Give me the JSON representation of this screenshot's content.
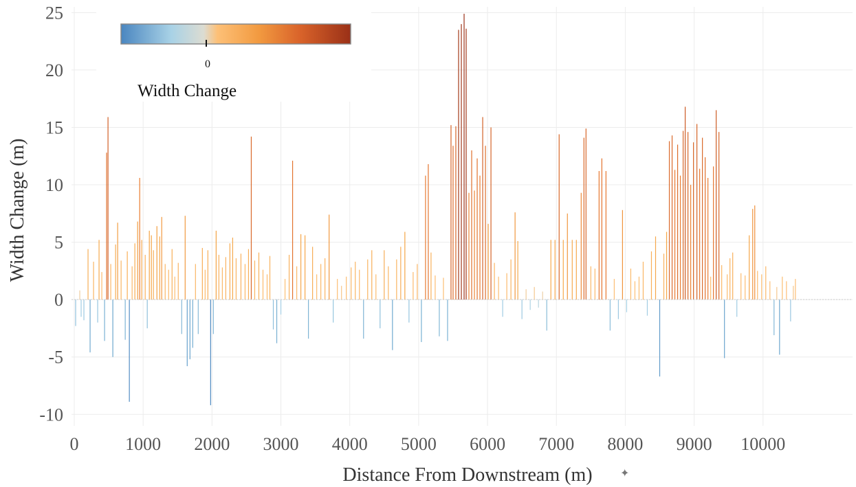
{
  "chart_data": {
    "type": "bar",
    "title": "",
    "xlabel": "Distance From Downstream (m)",
    "ylabel": "Width Change (m)",
    "xlim": [
      -40,
      11300
    ],
    "ylim": [
      -11,
      25.5
    ],
    "xticks": [
      0,
      1000,
      2000,
      3000,
      4000,
      5000,
      6000,
      7000,
      8000,
      9000,
      10000
    ],
    "yticks": [
      -10,
      -5,
      0,
      5,
      10,
      15,
      20,
      25
    ],
    "grid": true,
    "legend": {
      "title": "Width Change",
      "type": "colorbar",
      "placement": "top-left",
      "tick_value": 0,
      "tick_label": "0",
      "colors": [
        "#4a86c0",
        "#a9d2e6",
        "#dcdcd2",
        "#fdc077",
        "#f4a445",
        "#e8782f",
        "#c4511f",
        "#9a3017"
      ]
    },
    "bar_width_m": 10,
    "peaks": [
      {
        "x": 20,
        "v": -2.3
      },
      {
        "x": 80,
        "v": 0.8
      },
      {
        "x": 100,
        "v": -1.5
      },
      {
        "x": 140,
        "v": -1.8
      },
      {
        "x": 200,
        "v": 4.4
      },
      {
        "x": 230,
        "v": -4.6
      },
      {
        "x": 280,
        "v": 3.3
      },
      {
        "x": 340,
        "v": -2.0
      },
      {
        "x": 360,
        "v": 5.2
      },
      {
        "x": 400,
        "v": 2.4
      },
      {
        "x": 440,
        "v": -3.6
      },
      {
        "x": 470,
        "v": 12.8
      },
      {
        "x": 490,
        "v": 15.9
      },
      {
        "x": 530,
        "v": 3.1
      },
      {
        "x": 560,
        "v": -5.0
      },
      {
        "x": 600,
        "v": 4.8
      },
      {
        "x": 630,
        "v": 6.7
      },
      {
        "x": 680,
        "v": 3.4
      },
      {
        "x": 740,
        "v": -3.5
      },
      {
        "x": 770,
        "v": 4.2
      },
      {
        "x": 800,
        "v": -8.9
      },
      {
        "x": 840,
        "v": 2.9
      },
      {
        "x": 880,
        "v": 4.9
      },
      {
        "x": 920,
        "v": 6.8
      },
      {
        "x": 950,
        "v": 10.6
      },
      {
        "x": 980,
        "v": 5.2
      },
      {
        "x": 1030,
        "v": 3.9
      },
      {
        "x": 1060,
        "v": -2.5
      },
      {
        "x": 1090,
        "v": 6.0
      },
      {
        "x": 1120,
        "v": 5.6
      },
      {
        "x": 1150,
        "v": 4.3
      },
      {
        "x": 1200,
        "v": 6.4
      },
      {
        "x": 1240,
        "v": 5.5
      },
      {
        "x": 1270,
        "v": 7.2
      },
      {
        "x": 1320,
        "v": 3.1
      },
      {
        "x": 1370,
        "v": 2.6
      },
      {
        "x": 1420,
        "v": 4.4
      },
      {
        "x": 1460,
        "v": 2.0
      },
      {
        "x": 1510,
        "v": 3.2
      },
      {
        "x": 1560,
        "v": -3.0
      },
      {
        "x": 1610,
        "v": 7.3
      },
      {
        "x": 1640,
        "v": -5.8
      },
      {
        "x": 1680,
        "v": -5.2
      },
      {
        "x": 1720,
        "v": -4.2
      },
      {
        "x": 1760,
        "v": 3.1
      },
      {
        "x": 1800,
        "v": -3.0
      },
      {
        "x": 1860,
        "v": 4.5
      },
      {
        "x": 1900,
        "v": 2.6
      },
      {
        "x": 1940,
        "v": 4.3
      },
      {
        "x": 1980,
        "v": -9.2
      },
      {
        "x": 2020,
        "v": -3.0
      },
      {
        "x": 2060,
        "v": 6.0
      },
      {
        "x": 2100,
        "v": 3.9
      },
      {
        "x": 2150,
        "v": 2.8
      },
      {
        "x": 2200,
        "v": 3.7
      },
      {
        "x": 2260,
        "v": 4.9
      },
      {
        "x": 2300,
        "v": 5.4
      },
      {
        "x": 2350,
        "v": 3.6
      },
      {
        "x": 2420,
        "v": 4.0
      },
      {
        "x": 2480,
        "v": 3.1
      },
      {
        "x": 2530,
        "v": 4.4
      },
      {
        "x": 2570,
        "v": 14.2
      },
      {
        "x": 2620,
        "v": 3.4
      },
      {
        "x": 2680,
        "v": 4.1
      },
      {
        "x": 2740,
        "v": 2.6
      },
      {
        "x": 2800,
        "v": 2.2
      },
      {
        "x": 2840,
        "v": 3.8
      },
      {
        "x": 2890,
        "v": -2.6
      },
      {
        "x": 2940,
        "v": -3.8
      },
      {
        "x": 3000,
        "v": -1.3
      },
      {
        "x": 3060,
        "v": 1.8
      },
      {
        "x": 3120,
        "v": 3.9
      },
      {
        "x": 3170,
        "v": 12.1
      },
      {
        "x": 3230,
        "v": 2.9
      },
      {
        "x": 3290,
        "v": 5.7
      },
      {
        "x": 3350,
        "v": 5.6
      },
      {
        "x": 3400,
        "v": -3.4
      },
      {
        "x": 3460,
        "v": 4.6
      },
      {
        "x": 3520,
        "v": 2.2
      },
      {
        "x": 3580,
        "v": 3.1
      },
      {
        "x": 3640,
        "v": 3.6
      },
      {
        "x": 3700,
        "v": 7.4
      },
      {
        "x": 3760,
        "v": -2.0
      },
      {
        "x": 3820,
        "v": 1.8
      },
      {
        "x": 3880,
        "v": 1.2
      },
      {
        "x": 3950,
        "v": 2.0
      },
      {
        "x": 4020,
        "v": 2.8
      },
      {
        "x": 4080,
        "v": 3.3
      },
      {
        "x": 4140,
        "v": 2.6
      },
      {
        "x": 4200,
        "v": -3.4
      },
      {
        "x": 4260,
        "v": 3.5
      },
      {
        "x": 4320,
        "v": 4.3
      },
      {
        "x": 4380,
        "v": 2.2
      },
      {
        "x": 4440,
        "v": -2.5
      },
      {
        "x": 4500,
        "v": 4.3
      },
      {
        "x": 4560,
        "v": 2.9
      },
      {
        "x": 4620,
        "v": -4.4
      },
      {
        "x": 4680,
        "v": 3.5
      },
      {
        "x": 4740,
        "v": 4.6
      },
      {
        "x": 4800,
        "v": 5.9
      },
      {
        "x": 4860,
        "v": -2.0
      },
      {
        "x": 4920,
        "v": 2.4
      },
      {
        "x": 4980,
        "v": 3.1
      },
      {
        "x": 5040,
        "v": -3.7
      },
      {
        "x": 5100,
        "v": 10.8
      },
      {
        "x": 5140,
        "v": 11.8
      },
      {
        "x": 5180,
        "v": 4.1
      },
      {
        "x": 5240,
        "v": 2.1
      },
      {
        "x": 5300,
        "v": -3.2
      },
      {
        "x": 5360,
        "v": 1.9
      },
      {
        "x": 5420,
        "v": -3.6
      },
      {
        "x": 5470,
        "v": 15.2
      },
      {
        "x": 5500,
        "v": 13.4
      },
      {
        "x": 5540,
        "v": 15.1
      },
      {
        "x": 5580,
        "v": 23.5
      },
      {
        "x": 5620,
        "v": 24.0
      },
      {
        "x": 5660,
        "v": 24.9
      },
      {
        "x": 5690,
        "v": 23.6
      },
      {
        "x": 5730,
        "v": 9.3
      },
      {
        "x": 5770,
        "v": 13.0
      },
      {
        "x": 5810,
        "v": 9.5
      },
      {
        "x": 5850,
        "v": 12.3
      },
      {
        "x": 5890,
        "v": 10.8
      },
      {
        "x": 5930,
        "v": 15.9
      },
      {
        "x": 5970,
        "v": 13.4
      },
      {
        "x": 6010,
        "v": 6.6
      },
      {
        "x": 6050,
        "v": 15.0
      },
      {
        "x": 6100,
        "v": 3.2
      },
      {
        "x": 6160,
        "v": 2.0
      },
      {
        "x": 6220,
        "v": -1.5
      },
      {
        "x": 6280,
        "v": 2.3
      },
      {
        "x": 6340,
        "v": 3.5
      },
      {
        "x": 6400,
        "v": 7.6
      },
      {
        "x": 6440,
        "v": 5.1
      },
      {
        "x": 6500,
        "v": -1.7
      },
      {
        "x": 6560,
        "v": 0.9
      },
      {
        "x": 6620,
        "v": -0.9
      },
      {
        "x": 6680,
        "v": 1.1
      },
      {
        "x": 6740,
        "v": -0.7
      },
      {
        "x": 6800,
        "v": 0.7
      },
      {
        "x": 6860,
        "v": -2.7
      },
      {
        "x": 6920,
        "v": 5.2
      },
      {
        "x": 6980,
        "v": 5.2
      },
      {
        "x": 7040,
        "v": 14.4
      },
      {
        "x": 7100,
        "v": 5.2
      },
      {
        "x": 7160,
        "v": 7.5
      },
      {
        "x": 7230,
        "v": 5.2
      },
      {
        "x": 7290,
        "v": 5.2
      },
      {
        "x": 7360,
        "v": 9.3
      },
      {
        "x": 7400,
        "v": 14.1
      },
      {
        "x": 7430,
        "v": 14.9
      },
      {
        "x": 7500,
        "v": 2.9
      },
      {
        "x": 7560,
        "v": 2.7
      },
      {
        "x": 7620,
        "v": 11.2
      },
      {
        "x": 7660,
        "v": 12.3
      },
      {
        "x": 7720,
        "v": 11.2
      },
      {
        "x": 7780,
        "v": -2.7
      },
      {
        "x": 7840,
        "v": 1.8
      },
      {
        "x": 7900,
        "v": -1.7
      },
      {
        "x": 7960,
        "v": 7.8
      },
      {
        "x": 8020,
        "v": -1.1
      },
      {
        "x": 8080,
        "v": 2.7
      },
      {
        "x": 8140,
        "v": 1.6
      },
      {
        "x": 8200,
        "v": 2.0
      },
      {
        "x": 8260,
        "v": 3.3
      },
      {
        "x": 8320,
        "v": -1.4
      },
      {
        "x": 8380,
        "v": 4.2
      },
      {
        "x": 8440,
        "v": 5.5
      },
      {
        "x": 8500,
        "v": -6.7
      },
      {
        "x": 8560,
        "v": 4.0
      },
      {
        "x": 8600,
        "v": 5.9
      },
      {
        "x": 8640,
        "v": 13.8
      },
      {
        "x": 8680,
        "v": 14.3
      },
      {
        "x": 8720,
        "v": 11.3
      },
      {
        "x": 8760,
        "v": 13.5
      },
      {
        "x": 8800,
        "v": 10.8
      },
      {
        "x": 8840,
        "v": 14.7
      },
      {
        "x": 8870,
        "v": 16.8
      },
      {
        "x": 8910,
        "v": 14.6
      },
      {
        "x": 8950,
        "v": 10.0
      },
      {
        "x": 8990,
        "v": 13.7
      },
      {
        "x": 9040,
        "v": 15.3
      },
      {
        "x": 9080,
        "v": 11.4
      },
      {
        "x": 9120,
        "v": 14.1
      },
      {
        "x": 9160,
        "v": 12.4
      },
      {
        "x": 9200,
        "v": 10.6
      },
      {
        "x": 9240,
        "v": 2.0
      },
      {
        "x": 9280,
        "v": 11.6
      },
      {
        "x": 9320,
        "v": 16.5
      },
      {
        "x": 9360,
        "v": 14.6
      },
      {
        "x": 9400,
        "v": 3.0
      },
      {
        "x": 9440,
        "v": -5.1
      },
      {
        "x": 9480,
        "v": 2.2
      },
      {
        "x": 9520,
        "v": 3.6
      },
      {
        "x": 9560,
        "v": 4.1
      },
      {
        "x": 9620,
        "v": -1.5
      },
      {
        "x": 9680,
        "v": 2.3
      },
      {
        "x": 9740,
        "v": 2.1
      },
      {
        "x": 9800,
        "v": 5.6
      },
      {
        "x": 9850,
        "v": 7.9
      },
      {
        "x": 9880,
        "v": 8.2
      },
      {
        "x": 9920,
        "v": 2.5
      },
      {
        "x": 9980,
        "v": 2.2
      },
      {
        "x": 10040,
        "v": 2.9
      },
      {
        "x": 10100,
        "v": 1.6
      },
      {
        "x": 10160,
        "v": -3.1
      },
      {
        "x": 10200,
        "v": 1.1
      },
      {
        "x": 10240,
        "v": -4.8
      },
      {
        "x": 10280,
        "v": 2.0
      },
      {
        "x": 10340,
        "v": 1.6
      },
      {
        "x": 10400,
        "v": -1.9
      },
      {
        "x": 10440,
        "v": 1.2
      },
      {
        "x": 10470,
        "v": 1.8
      }
    ]
  }
}
